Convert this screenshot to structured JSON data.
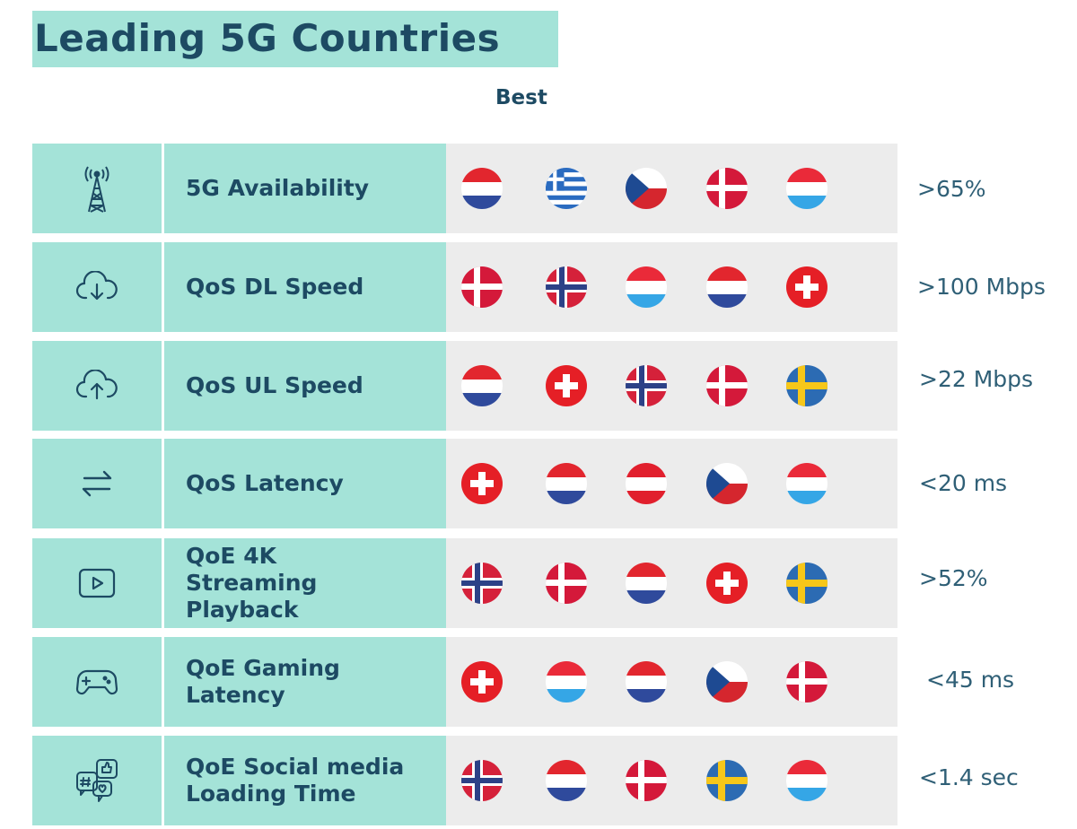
{
  "title": "Leading 5G Countries",
  "column_header": "Best",
  "rows": [
    {
      "icon": "cell-tower-icon",
      "label": "5G Availability",
      "flags": [
        "netherlands",
        "greece",
        "czechia",
        "denmark",
        "luxembourg"
      ],
      "threshold": ">65%"
    },
    {
      "icon": "cloud-download-icon",
      "label": "QoS DL Speed",
      "flags": [
        "denmark",
        "norway",
        "luxembourg",
        "netherlands",
        "switzerland"
      ],
      "threshold": ">100 Mbps"
    },
    {
      "icon": "cloud-upload-icon",
      "label": "QoS UL Speed",
      "flags": [
        "netherlands",
        "switzerland",
        "norway",
        "denmark",
        "sweden"
      ],
      "threshold": ">22 Mbps"
    },
    {
      "icon": "arrows-swap-icon",
      "label": "QoS Latency",
      "flags": [
        "switzerland",
        "netherlands",
        "austria",
        "czechia",
        "luxembourg"
      ],
      "threshold": "<20 ms"
    },
    {
      "icon": "video-play-icon",
      "label": "QoE 4K\nStreaming\nPlayback",
      "flags": [
        "norway",
        "denmark",
        "netherlands",
        "switzerland",
        "sweden"
      ],
      "threshold": ">52%"
    },
    {
      "icon": "gamepad-icon",
      "label": "QoE Gaming\nLatency",
      "flags": [
        "switzerland",
        "luxembourg",
        "netherlands",
        "czechia",
        "denmark"
      ],
      "threshold": "<45 ms"
    },
    {
      "icon": "social-media-icon",
      "label": "QoE Social media\nLoading Time",
      "flags": [
        "norway",
        "netherlands",
        "denmark",
        "sweden",
        "luxembourg"
      ],
      "threshold": "<1.4 sec"
    }
  ],
  "colors": {
    "accent_teal": "#a4e3d8",
    "text_navy": "#1d4a63",
    "flag_cell_grey": "#ececec"
  }
}
